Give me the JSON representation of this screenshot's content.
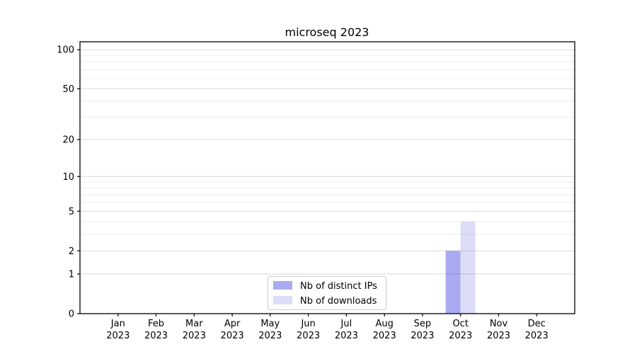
{
  "chart_data": {
    "type": "bar",
    "title": "microseq 2023",
    "categories": [
      "Jan",
      "Feb",
      "Mar",
      "Apr",
      "May",
      "Jun",
      "Jul",
      "Aug",
      "Sep",
      "Oct",
      "Nov",
      "Dec"
    ],
    "x_tick_second_line": "2023",
    "series": [
      {
        "name": "Nb of distinct IPs",
        "color": "#aaaaf2",
        "values": [
          0,
          0,
          0,
          0,
          0,
          0,
          0,
          0,
          0,
          2,
          0,
          0
        ]
      },
      {
        "name": "Nb of downloads",
        "color": "#ddddf8",
        "values": [
          0,
          0,
          0,
          0,
          0,
          0,
          0,
          0,
          0,
          4,
          0,
          0
        ]
      }
    ],
    "y_scale": "log1p",
    "ylim": [
      0,
      115
    ],
    "y_major_ticks": [
      0,
      1,
      2,
      5,
      10,
      20,
      50,
      100
    ],
    "y_minor_gridlines": [
      3,
      4,
      6,
      7,
      8,
      9,
      30,
      40,
      60,
      70,
      80,
      90
    ],
    "xlabel": "",
    "ylabel": "",
    "grid": true,
    "legend": {
      "position": "lower center"
    },
    "colors": {
      "background": "#ffffff",
      "spine": "#000000",
      "grid_major": "rgba(0,0,0,0.15)",
      "grid_minor": "rgba(0,0,0,0.07)",
      "legend_border": "#cccccc",
      "legend_background": "#ffffff",
      "text": "#000000"
    }
  }
}
